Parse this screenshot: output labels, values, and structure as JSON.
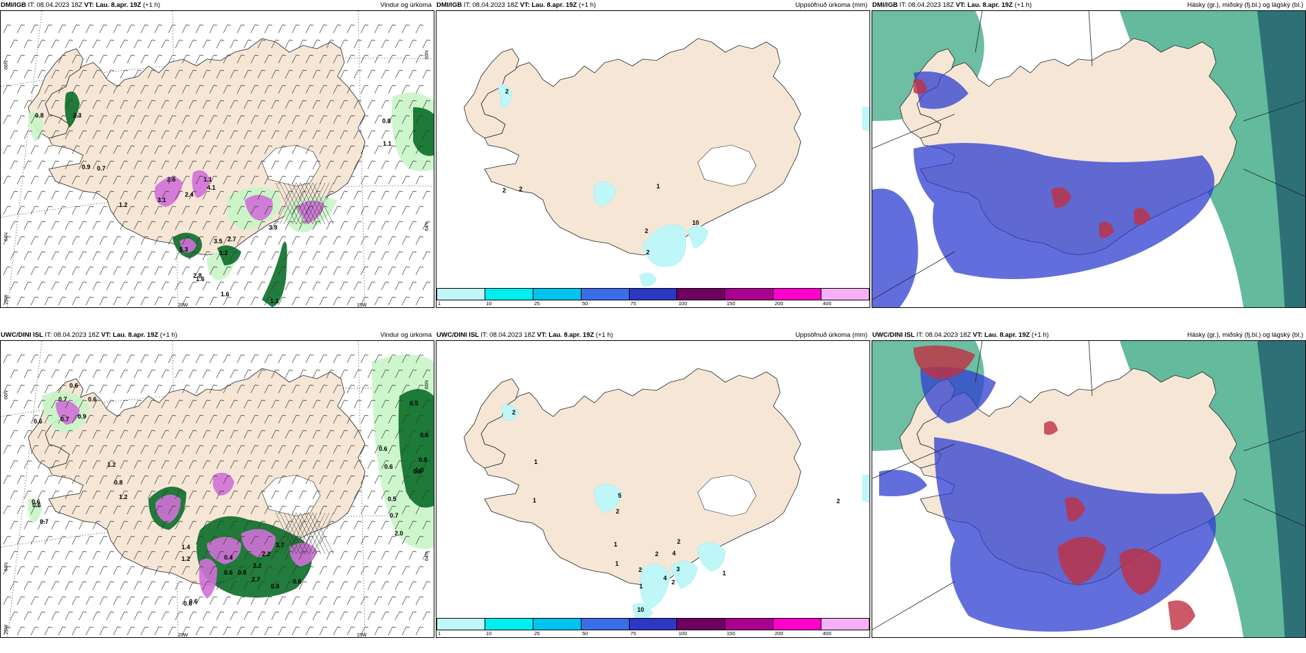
{
  "panels": [
    {
      "model": "DMI/IGB",
      "it_label": "IT:",
      "it_value": "08.04.2023 18Z",
      "vt_label": "VT:",
      "vt_value": "Lau. 8.apr. 19Z",
      "lead": "(+1 h)",
      "title": "Vindur og úrkoma",
      "type": "wind",
      "coords": {
        "lat1": "66N",
        "lat2": "64N",
        "lat3": "25W",
        "lon1": "20W",
        "lon2": "15W",
        "rlat1": "65N",
        "rlat2": "64N"
      },
      "values": [
        "0.8",
        "2.3",
        "0.9",
        "0.7",
        "1.2",
        "3.1",
        "2.4",
        "2.6",
        "1.1",
        "4.1",
        "3.9",
        "5.3",
        "1.2",
        "1.6",
        "3.5",
        "2.8",
        "1.6",
        "0.8",
        "1.1",
        "1.1",
        "2.7"
      ]
    },
    {
      "model": "DMI/IGB",
      "it_label": "IT:",
      "it_value": "08.04.2023 18Z",
      "vt_label": "VT:",
      "vt_value": "Lau. 8.apr. 19Z",
      "lead": "(+1 h)",
      "title": "Uppsöfnuð úrkoma (mm)",
      "type": "accum",
      "values": [
        "2",
        "2",
        "2",
        "1",
        "10",
        "2",
        "2"
      ]
    },
    {
      "model": "DMI/IGB",
      "it_label": "IT:",
      "it_value": "08.04.2023 18Z",
      "vt_label": "VT:",
      "vt_value": "Lau. 8.apr. 19Z",
      "lead": "(+1 h)",
      "title": "Hásky (gr.), miðský (fj.bl.) og lágský (bl.)",
      "type": "cloud"
    },
    {
      "model": "UWC/DINI ISL",
      "it_label": "IT:",
      "it_value": "08.04.2023 18Z",
      "vt_label": "VT:",
      "vt_value": "Lau. 8.apr. 19Z",
      "lead": "(+1 h)",
      "title": "Vindur og úrkoma",
      "type": "wind",
      "coords": {
        "lat1": "66N",
        "lat2": "64N",
        "lat3": "25W",
        "lon1": "20W",
        "lon2": "15W",
        "rlat1": "65N",
        "rlat2": "64N"
      },
      "values": [
        "0.6",
        "0.7",
        "0.6",
        "0.6",
        "0.7",
        "0.9",
        "1.2",
        "0.8",
        "1.2",
        "0.6",
        "0.6",
        "0.7",
        "1.4",
        "1.2",
        "0.4",
        "0.6",
        "0.8",
        "2.7",
        "2.2",
        "3.7",
        "2.2",
        "0.8",
        "0.6",
        "0.6",
        "0.6",
        "0.5",
        "0.6",
        "0.8",
        "0.6",
        "0.6",
        "0.5",
        "0.7",
        "0.8",
        "1.0",
        "2.0",
        "0.5"
      ]
    },
    {
      "model": "UWC/DINI ISL",
      "it_label": "IT:",
      "it_value": "08.04.2023 18Z",
      "vt_label": "VT:",
      "vt_value": "Lau. 8.apr. 19Z",
      "lead": "(+1 h)",
      "title": "Uppsöfnuð úrkoma (mm)",
      "type": "accum",
      "values": [
        "2",
        "1",
        "1",
        "5",
        "2",
        "1",
        "1",
        "2",
        "4",
        "2",
        "2",
        "10",
        "3",
        "4",
        "2",
        "1",
        "1",
        "2"
      ]
    },
    {
      "model": "UWC/DINI ISL",
      "it_label": "IT:",
      "it_value": "08.04.2023 18Z",
      "vt_label": "VT:",
      "vt_value": "Lau. 8.apr. 19Z",
      "lead": "(+1 h)",
      "title": "Hásky (gr.), miðský (fj.bl.) og lágský (bl.)",
      "type": "cloud"
    }
  ],
  "colorbar": {
    "colors": [
      "#bff7f9",
      "#00eeee",
      "#00c3ee",
      "#3a6ee8",
      "#2c37c4",
      "#6e0060",
      "#aa0090",
      "#ff00cc",
      "#f6b0f6"
    ],
    "ticks": [
      "1",
      "10",
      "25",
      "50",
      "75",
      "100",
      "150",
      "200",
      "400"
    ]
  },
  "theme": {
    "land": "#f5e6d6",
    "precip_light": "#c8f5c8",
    "precip_mid": "#5cc85c",
    "precip_dark": "#0a6e28",
    "precip_heavy": "#d070d8",
    "cloud_high": "#2fa37c",
    "cloud_mid": "#2d3ed0",
    "cloud_low": "#c03040"
  }
}
